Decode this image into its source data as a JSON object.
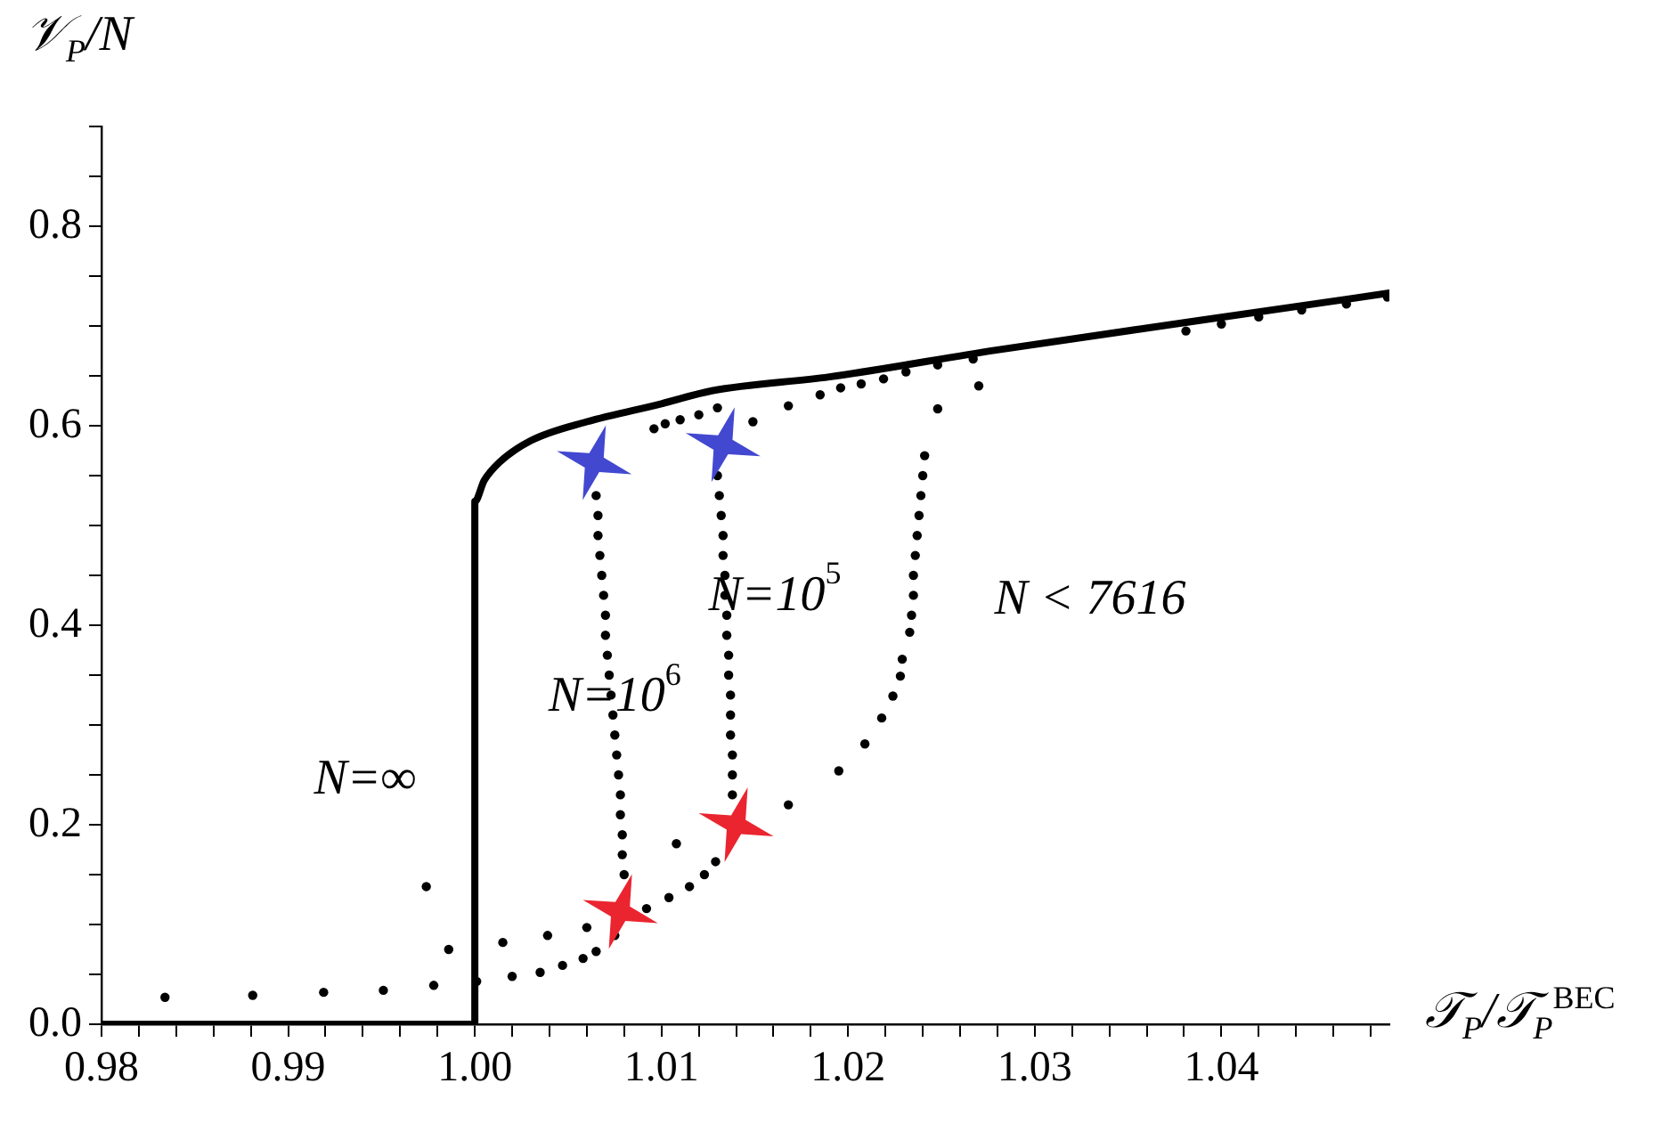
{
  "chart_data": {
    "type": "scatter",
    "xlabel": "𝒯$_{P}$/𝒯$_{P}$$^{BEC}$",
    "ylabel": "𝒱$_{P}$/N",
    "xlim": [
      0.98,
      1.049
    ],
    "ylim": [
      0,
      0.9
    ],
    "xticks": [
      0.98,
      {
        "value": 0.982,
        "label": null
      },
      {
        "value": 0.984,
        "label": null
      },
      {
        "value": 0.986,
        "label": null
      },
      {
        "value": 0.988,
        "label": null
      },
      0.99,
      {
        "value": 0.992,
        "label": null
      },
      {
        "value": 0.994,
        "label": null
      },
      {
        "value": 0.996,
        "label": null
      },
      {
        "value": 0.998,
        "label": null
      },
      {
        "value": 1.0,
        "label": "1.00"
      },
      {
        "value": 1.002,
        "label": null
      },
      {
        "value": 1.004,
        "label": null
      },
      {
        "value": 1.006,
        "label": null
      },
      {
        "value": 1.008,
        "label": null
      },
      1.01,
      {
        "value": 1.012,
        "label": null
      },
      {
        "value": 1.014,
        "label": null
      },
      {
        "value": 1.016,
        "label": null
      },
      {
        "value": 1.018,
        "label": null
      },
      1.02,
      {
        "value": 1.022,
        "label": null
      },
      {
        "value": 1.024,
        "label": null
      },
      {
        "value": 1.026,
        "label": null
      },
      {
        "value": 1.028,
        "label": null
      },
      1.03,
      {
        "value": 1.032,
        "label": null
      },
      {
        "value": 1.034,
        "label": null
      },
      {
        "value": 1.036,
        "label": null
      },
      {
        "value": 1.038,
        "label": null
      },
      1.04,
      {
        "value": 1.042,
        "label": null
      },
      {
        "value": 1.044,
        "label": null
      },
      {
        "value": 1.046,
        "label": null
      },
      {
        "value": 1.048,
        "label": null
      }
    ],
    "yticks": [
      {
        "value": 0,
        "label": "0.0"
      },
      {
        "value": 0.05,
        "label": null
      },
      {
        "value": 0.1,
        "label": null
      },
      {
        "value": 0.15,
        "label": null
      },
      0.2,
      {
        "value": 0.25,
        "label": null
      },
      {
        "value": 0.3,
        "label": null
      },
      {
        "value": 0.35,
        "label": null
      },
      0.4,
      {
        "value": 0.45,
        "label": null
      },
      {
        "value": 0.5,
        "label": null
      },
      {
        "value": 0.55,
        "label": null
      },
      0.6,
      {
        "value": 0.65,
        "label": null
      },
      {
        "value": 0.7,
        "label": null
      },
      {
        "value": 0.75,
        "label": null
      },
      0.8,
      {
        "value": 0.85,
        "label": null
      },
      {
        "value": 0.9,
        "label": null
      }
    ],
    "grid": false,
    "series": [
      {
        "type": "line",
        "color": "#000000",
        "marker": "none",
        "line_style": "solid",
        "x": [
          0.98,
          1.0,
          1.0,
          1.0005,
          1.0013,
          1.003,
          1.006,
          1.01,
          1.0127,
          1.019,
          1.028,
          1.039,
          1.049
        ],
        "values": [
          0,
          0,
          0.524,
          0.545,
          0.563,
          0.585,
          0.604,
          0.622,
          0.635,
          0.649,
          0.676,
          0.706,
          0.733
        ]
      },
      {
        "color": "#000000",
        "marker": "circle",
        "x": [
          0.9834,
          0.9881,
          0.9919,
          0.9951,
          0.9978,
          1.0001,
          1.002,
          1.0035,
          1.0047,
          1.0058,
          1.0065,
          1.0075,
          1.0092,
          1.0104,
          1.0115,
          1.0123,
          1.0129,
          1.0195,
          1.0209,
          1.0218,
          1.0224,
          1.0228,
          1.0229,
          1.0233,
          1.0234,
          1.0235,
          1.0235,
          1.0236,
          1.0237,
          1.0238,
          1.0239,
          1.024,
          1.0241,
          1.0248,
          1.027,
          1.0168,
          1.0108,
          1.0039,
          1.0015,
          0.9986,
          0.9974,
          1.006,
          1.0096,
          1.0102,
          1.011,
          1.012,
          1.013,
          1.0149,
          1.0168,
          1.0185,
          1.0196,
          1.0207,
          1.0219,
          1.0231,
          1.0248,
          1.0267,
          1.0381,
          1.04,
          1.042,
          1.0443,
          1.0467,
          1.0489,
          1.0065,
          1.0066,
          1.0066,
          1.0067,
          1.0068,
          1.0069,
          1.007,
          1.007,
          1.0071,
          1.0072,
          1.0073,
          1.0074,
          1.0075,
          1.0076,
          1.0077,
          1.0078,
          1.0078,
          1.0079,
          1.0079,
          1.008,
          1.013,
          1.0131,
          1.0132,
          1.0133,
          1.0133,
          1.0134,
          1.0134,
          1.0135,
          1.0135,
          1.0136,
          1.0136,
          1.0137,
          1.0137,
          1.0137,
          1.0138,
          1.0138,
          1.0138
        ],
        "values": [
          0.027,
          0.029,
          0.032,
          0.034,
          0.039,
          0.043,
          0.048,
          0.052,
          0.059,
          0.066,
          0.073,
          0.089,
          0.116,
          0.127,
          0.138,
          0.15,
          0.163,
          0.254,
          0.281,
          0.307,
          0.329,
          0.349,
          0.366,
          0.393,
          0.41,
          0.43,
          0.45,
          0.47,
          0.49,
          0.51,
          0.53,
          0.55,
          0.57,
          0.617,
          0.64,
          0.22,
          0.181,
          0.089,
          0.082,
          0.075,
          0.138,
          0.097,
          0.597,
          0.602,
          0.606,
          0.611,
          0.618,
          0.604,
          0.62,
          0.631,
          0.638,
          0.642,
          0.647,
          0.654,
          0.661,
          0.667,
          0.695,
          0.702,
          0.709,
          0.716,
          0.722,
          0.729,
          0.53,
          0.51,
          0.49,
          0.47,
          0.45,
          0.43,
          0.41,
          0.39,
          0.37,
          0.35,
          0.33,
          0.31,
          0.29,
          0.27,
          0.25,
          0.23,
          0.21,
          0.19,
          0.17,
          0.15,
          0.55,
          0.53,
          0.51,
          0.49,
          0.47,
          0.45,
          0.43,
          0.41,
          0.39,
          0.37,
          0.35,
          0.33,
          0.31,
          0.29,
          0.27,
          0.25,
          0.23
        ]
      },
      {
        "color": "#4348d0",
        "marker": "star",
        "x": [
          1.0064,
          1.0133
        ],
        "values": [
          0.563,
          0.581
        ]
      },
      {
        "color": "#ea2530",
        "marker": "star",
        "x": [
          1.0078,
          1.014
        ],
        "values": [
          0.113,
          0.2
        ]
      }
    ],
    "annotations": [
      "N=∞",
      {
        "text": "N=10$^{6}$",
        "x": 1.0075,
        "y": 0.327
      },
      "N=10$^{5}$",
      "N < 7616"
    ]
  }
}
